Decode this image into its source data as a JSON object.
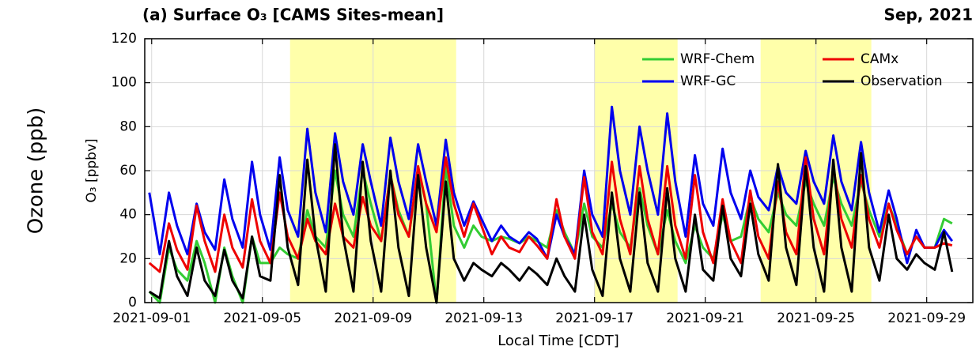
{
  "side_label": "Ozone (ppb)",
  "chart_data": {
    "type": "line",
    "title": "(a) Surface O₃ [CAMS Sites-mean]",
    "subtitle": "Sep, 2021",
    "x_label": "Local Time [CDT]",
    "y_label": "O₃ [ppbv]",
    "xlim": [
      "2021-08-31T18:00",
      "2021-09-30T16:00"
    ],
    "xticks": [
      "2021-09-01",
      "2021-09-05",
      "2021-09-09",
      "2021-09-13",
      "2021-09-17",
      "2021-09-21",
      "2021-09-25",
      "2021-09-29"
    ],
    "ylim": [
      0,
      120
    ],
    "yticks": [
      0,
      20,
      40,
      60,
      80,
      100,
      120
    ],
    "grid": true,
    "legend": "upper right",
    "shaded_periods": [
      {
        "start": "2021-09-06T00:00",
        "end": "2021-09-12T00:00",
        "color": "#ffffaa"
      },
      {
        "start": "2021-09-17T00:00",
        "end": "2021-09-20T00:00",
        "color": "#ffffaa"
      },
      {
        "start": "2021-09-23T00:00",
        "end": "2021-09-27T00:00",
        "color": "#ffffaa"
      }
    ],
    "x": [
      "2021-08-31T22:00",
      "2021-09-01T07:00",
      "2021-09-01T15:00",
      "2021-09-01T22:00",
      "2021-09-02T07:00",
      "2021-09-02T15:00",
      "2021-09-02T22:00",
      "2021-09-03T07:00",
      "2021-09-03T15:00",
      "2021-09-03T22:00",
      "2021-09-04T07:00",
      "2021-09-04T15:00",
      "2021-09-04T22:00",
      "2021-09-05T07:00",
      "2021-09-05T15:00",
      "2021-09-05T22:00",
      "2021-09-06T07:00",
      "2021-09-06T15:00",
      "2021-09-06T22:00",
      "2021-09-07T07:00",
      "2021-09-07T15:00",
      "2021-09-07T22:00",
      "2021-09-08T07:00",
      "2021-09-08T15:00",
      "2021-09-08T22:00",
      "2021-09-09T07:00",
      "2021-09-09T15:00",
      "2021-09-09T22:00",
      "2021-09-10T07:00",
      "2021-09-10T15:00",
      "2021-09-10T22:00",
      "2021-09-11T07:00",
      "2021-09-11T15:00",
      "2021-09-11T22:00",
      "2021-09-12T07:00",
      "2021-09-12T15:00",
      "2021-09-12T22:00",
      "2021-09-13T07:00",
      "2021-09-13T15:00",
      "2021-09-13T22:00",
      "2021-09-14T07:00",
      "2021-09-14T15:00",
      "2021-09-14T22:00",
      "2021-09-15T07:00",
      "2021-09-15T15:00",
      "2021-09-15T22:00",
      "2021-09-16T07:00",
      "2021-09-16T15:00",
      "2021-09-16T22:00",
      "2021-09-17T07:00",
      "2021-09-17T15:00",
      "2021-09-17T22:00",
      "2021-09-18T07:00",
      "2021-09-18T15:00",
      "2021-09-18T22:00",
      "2021-09-19T07:00",
      "2021-09-19T15:00",
      "2021-09-19T22:00",
      "2021-09-20T07:00",
      "2021-09-20T15:00",
      "2021-09-20T22:00",
      "2021-09-21T07:00",
      "2021-09-21T15:00",
      "2021-09-21T22:00",
      "2021-09-22T07:00",
      "2021-09-22T15:00",
      "2021-09-22T22:00",
      "2021-09-23T07:00",
      "2021-09-23T15:00",
      "2021-09-23T22:00",
      "2021-09-24T07:00",
      "2021-09-24T15:00",
      "2021-09-24T22:00",
      "2021-09-25T07:00",
      "2021-09-25T15:00",
      "2021-09-25T22:00",
      "2021-09-26T07:00",
      "2021-09-26T15:00",
      "2021-09-26T22:00",
      "2021-09-27T07:00",
      "2021-09-27T15:00",
      "2021-09-27T22:00",
      "2021-09-28T07:00",
      "2021-09-28T15:00",
      "2021-09-28T22:00",
      "2021-09-29T07:00",
      "2021-09-29T15:00",
      "2021-09-29T22:00"
    ],
    "series": [
      {
        "name": "WRF-Chem",
        "color": "#33cc33",
        "values": [
          5,
          0,
          25,
          15,
          10,
          28,
          18,
          0,
          25,
          12,
          0,
          30,
          18,
          18,
          25,
          22,
          20,
          42,
          30,
          25,
          60,
          40,
          30,
          60,
          45,
          28,
          58,
          42,
          30,
          60,
          45,
          0,
          62,
          35,
          25,
          35,
          30,
          28,
          30,
          29,
          27,
          30,
          28,
          25,
          42,
          32,
          22,
          45,
          30,
          25,
          45,
          32,
          25,
          52,
          35,
          22,
          42,
          28,
          18,
          35,
          25,
          20,
          40,
          28,
          30,
          48,
          38,
          32,
          50,
          40,
          35,
          55,
          45,
          35,
          57,
          45,
          35,
          55,
          42,
          30,
          45,
          35,
          22,
          30,
          25,
          25,
          38,
          36
        ]
      },
      {
        "name": "WRF-GC",
        "color": "#0000ee",
        "values": [
          50,
          22,
          50,
          35,
          22,
          45,
          32,
          24,
          56,
          38,
          25,
          64,
          40,
          24,
          66,
          42,
          30,
          79,
          50,
          32,
          77,
          55,
          40,
          72,
          55,
          35,
          75,
          55,
          38,
          72,
          55,
          35,
          74,
          50,
          35,
          46,
          38,
          28,
          35,
          30,
          27,
          32,
          29,
          20,
          40,
          30,
          22,
          60,
          40,
          30,
          89,
          60,
          40,
          80,
          60,
          40,
          86,
          55,
          30,
          67,
          45,
          35,
          70,
          50,
          38,
          60,
          48,
          42,
          62,
          50,
          45,
          69,
          55,
          45,
          76,
          55,
          42,
          73,
          50,
          32,
          51,
          38,
          18,
          33,
          25,
          25,
          33,
          28
        ]
      },
      {
        "name": "CAMx",
        "color": "#ee0000",
        "values": [
          18,
          14,
          36,
          24,
          15,
          44,
          28,
          14,
          40,
          25,
          16,
          47,
          28,
          18,
          50,
          30,
          20,
          38,
          28,
          22,
          45,
          30,
          25,
          48,
          35,
          28,
          58,
          40,
          30,
          62,
          45,
          32,
          66,
          45,
          30,
          45,
          35,
          22,
          30,
          25,
          23,
          30,
          26,
          20,
          47,
          30,
          20,
          57,
          32,
          22,
          64,
          38,
          22,
          62,
          38,
          22,
          62,
          35,
          20,
          58,
          32,
          18,
          47,
          28,
          18,
          51,
          30,
          20,
          55,
          32,
          22,
          66,
          38,
          22,
          62,
          38,
          25,
          58,
          38,
          25,
          45,
          33,
          22,
          30,
          25,
          25,
          27,
          26
        ]
      },
      {
        "name": "Observation",
        "color": "#000000",
        "values": [
          5,
          2,
          28,
          12,
          3,
          25,
          10,
          3,
          24,
          10,
          2,
          30,
          12,
          10,
          58,
          25,
          8,
          65,
          30,
          5,
          72,
          30,
          5,
          64,
          28,
          5,
          60,
          25,
          3,
          58,
          25,
          0,
          55,
          20,
          10,
          18,
          15,
          12,
          18,
          15,
          10,
          16,
          13,
          8,
          20,
          12,
          5,
          40,
          15,
          3,
          50,
          20,
          5,
          50,
          18,
          5,
          52,
          20,
          5,
          40,
          15,
          10,
          44,
          20,
          12,
          45,
          22,
          10,
          63,
          25,
          8,
          62,
          25,
          5,
          65,
          25,
          5,
          68,
          25,
          10,
          40,
          20,
          15,
          22,
          18,
          15,
          32,
          14
        ]
      }
    ]
  }
}
